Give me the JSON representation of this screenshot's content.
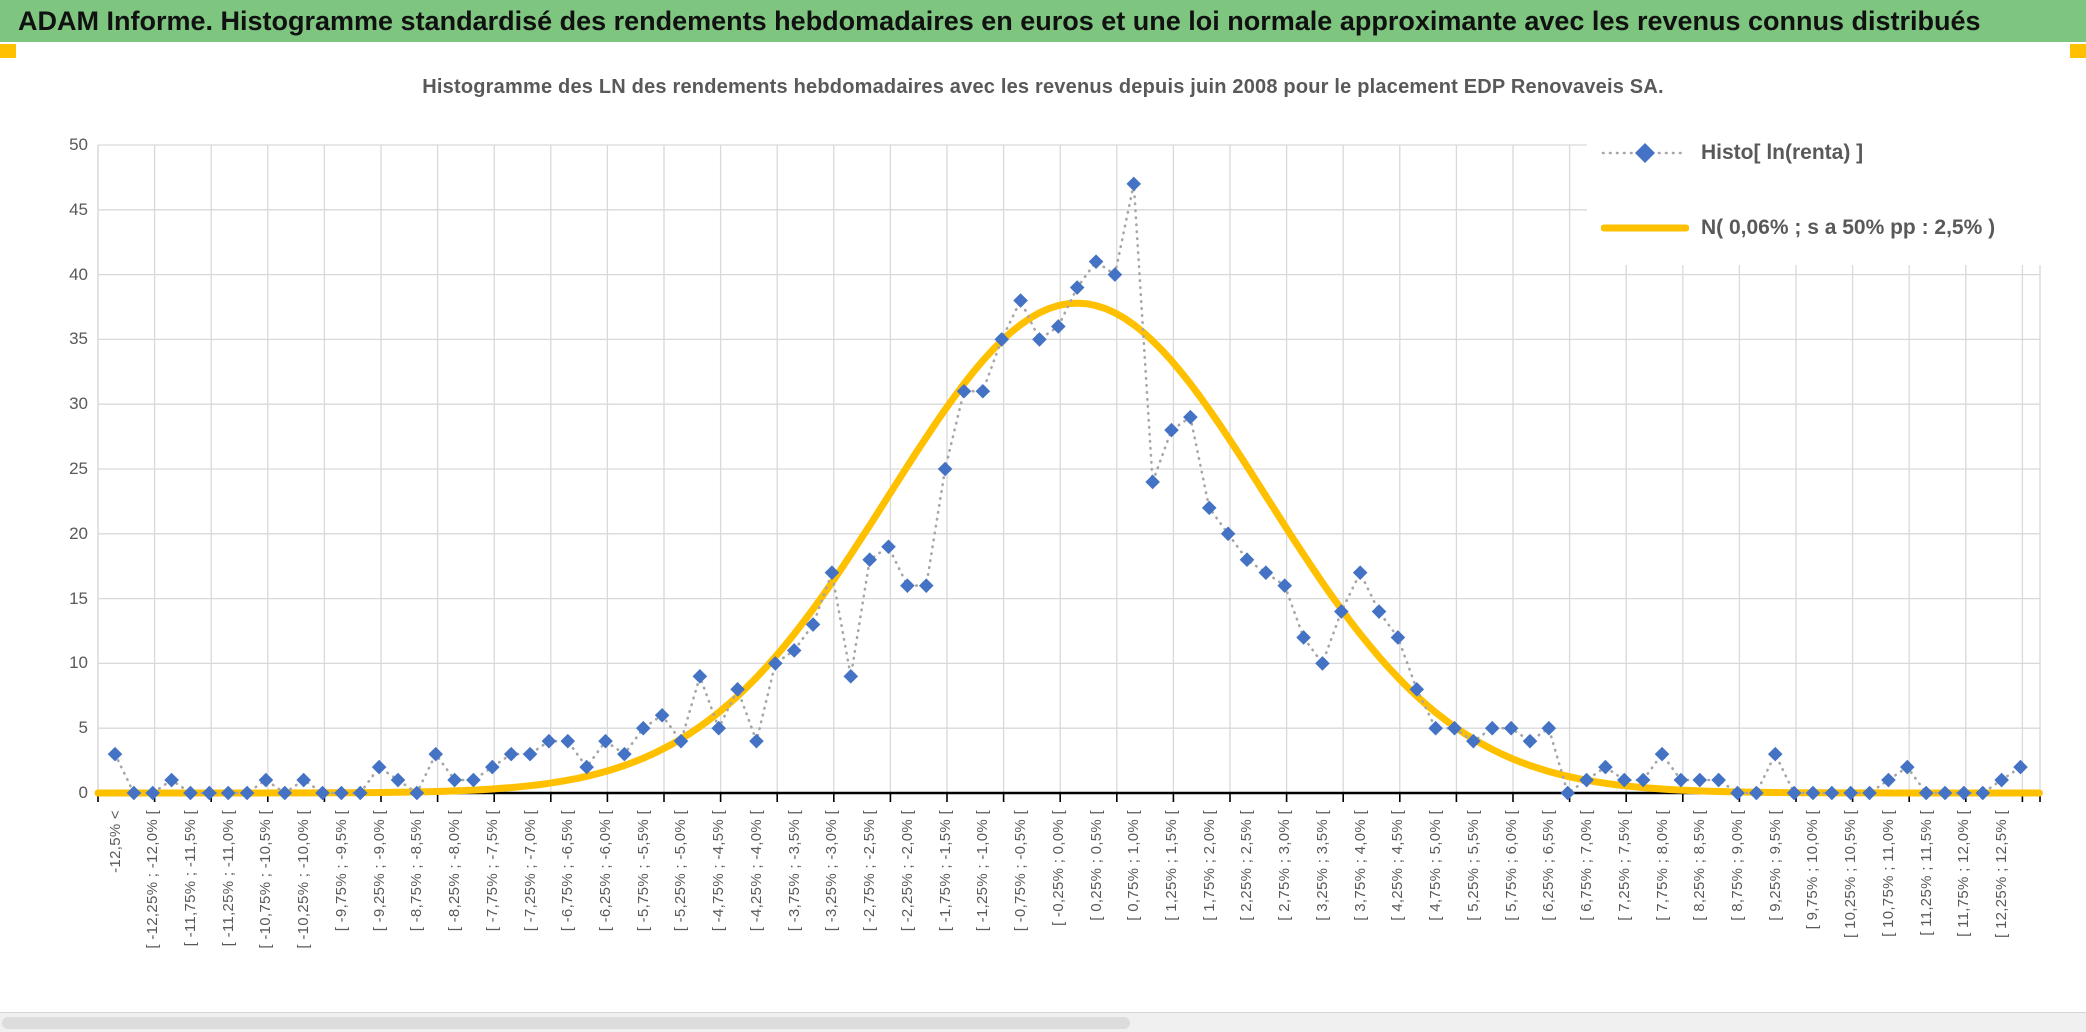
{
  "header": {
    "title": "ADAM Informe. Histogramme standardisé des rendements hebdomadaires en euros et une loi normale approximante avec les revenus connus distribués"
  },
  "colors": {
    "header_green": "#7EC57F",
    "accent_orange": "#FFC000",
    "series_blue": "#4472C4",
    "connector_gray": "#A6A6A6",
    "curve_yellow": "#FFC000",
    "gridline": "#D9D9D9",
    "axis_black": "#000000",
    "text_gray": "#595959"
  },
  "chart_data": {
    "type": "line",
    "title": "Histogramme des LN des rendements hebdomadaires avec les revenus depuis juin 2008 pour le placement EDP Renovaveis SA.",
    "xlabel": "",
    "ylabel": "",
    "ylim": [
      0,
      50
    ],
    "yticks": [
      0,
      5,
      10,
      15,
      20,
      25,
      30,
      35,
      40,
      45,
      50
    ],
    "grid": true,
    "legend_position": "top-right",
    "x_label_interval": 2,
    "categories": [
      "-12,5% <",
      "",
      "[ -12,25% ; -12,0% [",
      "",
      "[ -11,75% ; -11,5% [",
      "",
      "[ -11,25% ; -11,0% [",
      "",
      "[ -10,75% ; -10,5% [",
      "",
      "[ -10,25% ; -10,0% [",
      "",
      "[ -9,75% ; -9,5% [",
      "",
      "[ -9,25% ; -9,0% [",
      "",
      "[ -8,75% ; -8,5% [",
      "",
      "[ -8,25% ; -8,0% [",
      "",
      "[ -7,75% ; -7,5% [",
      "",
      "[ -7,25% ; -7,0% [",
      "",
      "[ -6,75% ; -6,5% [",
      "",
      "[ -6,25% ; -6,0% [",
      "",
      "[ -5,75% ; -5,5% [",
      "",
      "[ -5,25% ; -5,0% [",
      "",
      "[ -4,75% ; -4,5% [",
      "",
      "[ -4,25% ; -4,0% [",
      "",
      "[ -3,75% ; -3,5% [",
      "",
      "[ -3,25% ; -3,0% [",
      "",
      "[ -2,75% ; -2,5% [",
      "",
      "[ -2,25% ; -2,0% [",
      "",
      "[ -1,75% ; -1,5% [",
      "",
      "[ -1,25% ; -1,0% [",
      "",
      "[ -0,75% ; -0,5% [",
      "",
      "[ -0,25% ; 0,0% [",
      "",
      "[ 0,25% ; 0,5% [",
      "",
      "[ 0,75% ; 1,0% [",
      "",
      "[ 1,25% ; 1,5% [",
      "",
      "[ 1,75% ; 2,0% [",
      "",
      "[ 2,25% ; 2,5% [",
      "",
      "[ 2,75% ; 3,0% [",
      "",
      "[ 3,25% ; 3,5% [",
      "",
      "[ 3,75% ; 4,0% [",
      "",
      "[ 4,25% ; 4,5% [",
      "",
      "[ 4,75% ; 5,0% [",
      "",
      "[ 5,25% ; 5,5% [",
      "",
      "[ 5,75% ; 6,0% [",
      "",
      "[ 6,25% ; 6,5% [",
      "",
      "[ 6,75% ; 7,0% [",
      "",
      "[ 7,25% ; 7,5% [",
      "",
      "[ 7,75% ; 8,0% [",
      "",
      "[ 8,25% ; 8,5% [",
      "",
      "[ 8,75% ; 9,0% [",
      "",
      "[ 9,25% ; 9,5% [",
      "",
      "[ 9,75% ; 10,0% [",
      "",
      "[ 10,25% ; 10,5% [",
      "",
      "[ 10,75% ; 11,0% [",
      "",
      "[ 11,25% ; 11,5% [",
      "",
      "[ 11,75% ; 12,0% [",
      "",
      "[ 12,25% ; 12,5% [",
      ""
    ],
    "series": [
      {
        "name": "Histo[ ln(renta) ]",
        "marker": "diamond",
        "line_style": "dotted",
        "values": [
          3,
          0,
          0,
          1,
          0,
          0,
          0,
          0,
          1,
          0,
          1,
          0,
          0,
          0,
          2,
          1,
          0,
          3,
          1,
          1,
          2,
          3,
          3,
          4,
          4,
          2,
          4,
          3,
          5,
          6,
          4,
          9,
          5,
          8,
          4,
          10,
          11,
          13,
          17,
          9,
          18,
          19,
          16,
          16,
          25,
          31,
          31,
          35,
          38,
          35,
          36,
          39,
          41,
          40,
          47,
          24,
          28,
          29,
          22,
          20,
          18,
          17,
          16,
          12,
          10,
          14,
          17,
          14,
          12,
          8,
          5,
          5,
          4,
          5,
          5,
          4,
          5,
          0,
          1,
          2,
          1,
          1,
          3,
          1,
          1,
          1,
          0,
          0,
          3,
          0,
          0,
          0,
          0,
          0,
          1,
          2,
          0,
          0,
          0,
          0,
          1,
          2
        ]
      },
      {
        "name": "N( 0,06% ; s a 50% pp : 2,5% )",
        "line_style": "solid",
        "normal_params": {
          "mu_cat": 51.0,
          "sigma_cat": 10.0,
          "peak": 37.8
        }
      }
    ]
  }
}
